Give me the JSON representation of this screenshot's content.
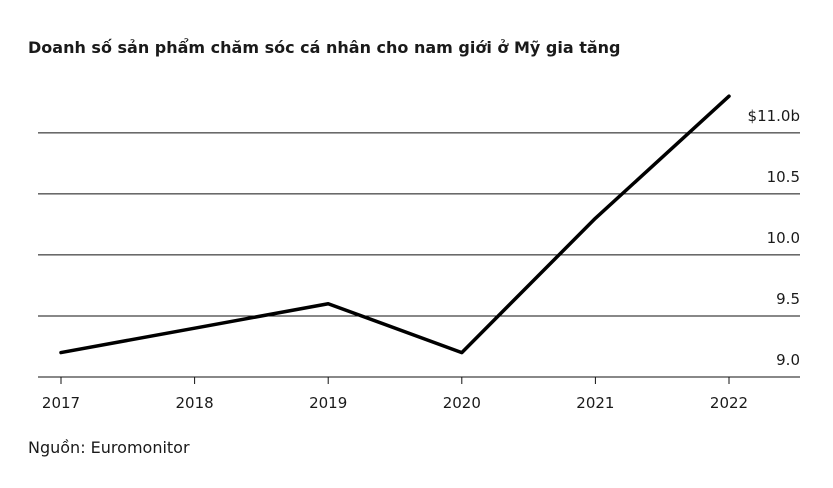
{
  "chart_data": {
    "type": "line",
    "title": "Doanh số sản phẩm chăm sóc cá nhân cho nam giới ở Mỹ gia tăng",
    "source": "Nguồn: Euromonitor",
    "categories": [
      "2017",
      "2018",
      "2019",
      "2020",
      "2021",
      "2022"
    ],
    "values": [
      9.2,
      9.4,
      9.6,
      9.2,
      10.3,
      11.3
    ],
    "color": "#000000",
    "ylim": [
      9.0,
      11.4
    ],
    "yticks": [
      {
        "value": 9.0,
        "label": "9.0"
      },
      {
        "value": 9.5,
        "label": "9.5"
      },
      {
        "value": 10.0,
        "label": "10.0"
      },
      {
        "value": 10.5,
        "label": "10.5"
      },
      {
        "value": 11.0,
        "label": "$11.0b"
      }
    ],
    "grid": true
  }
}
